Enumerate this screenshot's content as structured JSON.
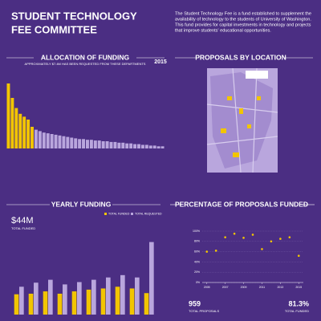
{
  "header": {
    "title_line1": "STUDENT TECHNOLOGY",
    "title_line2": "FEE COMMITTEE",
    "description": [
      "The Student Technology Fee is a fund established to supplement the",
      "availability of technology to the students of University of Washington.",
      "This fund provides for capital investments in technology and projects",
      "that improve students' educational opportunities."
    ],
    "map_title": "PROPOSALS BY LOCATION"
  },
  "chart_data": [
    {
      "type": "bar",
      "title": "ALLOCATION OF FUNDING",
      "subtitle": "APPROXIMATELY $7.4M HAS BEEN REQUESTED FROM THESE DEPARTMENTS",
      "annotation": "2015",
      "categories": [
        null,
        null,
        null,
        null,
        null,
        null,
        null,
        null,
        null,
        null,
        null,
        null,
        null,
        null,
        null,
        null,
        null,
        null,
        null,
        null,
        null,
        null,
        null,
        null,
        null,
        null,
        null,
        null,
        null,
        null,
        null,
        null,
        null,
        null,
        null,
        null,
        null,
        null,
        null,
        null
      ],
      "values": [
        90,
        70,
        56,
        48,
        44,
        40,
        30,
        26,
        24,
        22,
        21,
        20,
        19,
        18,
        17,
        16,
        15,
        14,
        13,
        13,
        12,
        12,
        11,
        11,
        10,
        10,
        9,
        9,
        8,
        8,
        7,
        7,
        6,
        6,
        5,
        5,
        4,
        4,
        3,
        3
      ],
      "colors": [
        "#f2c500",
        "#f2c500",
        "#f2c500",
        "#f2c500",
        "#f2c500",
        "#f2c500",
        "#f2c500",
        "#b9a6dd",
        "#b9a6dd",
        "#b9a6dd",
        "#b9a6dd",
        "#b9a6dd",
        "#b9a6dd",
        "#b9a6dd",
        "#b9a6dd",
        "#b9a6dd",
        "#b9a6dd",
        "#b9a6dd",
        "#b9a6dd",
        "#b9a6dd",
        "#b9a6dd",
        "#b9a6dd",
        "#b9a6dd",
        "#b9a6dd",
        "#b9a6dd",
        "#b9a6dd",
        "#b9a6dd",
        "#b9a6dd",
        "#b9a6dd",
        "#b9a6dd",
        "#b9a6dd",
        "#b9a6dd",
        "#b9a6dd",
        "#b9a6dd",
        "#b9a6dd",
        "#b9a6dd",
        "#b9a6dd",
        "#b9a6dd",
        "#b9a6dd",
        "#b9a6dd"
      ],
      "ylim": [
        0,
        100
      ]
    },
    {
      "type": "bar",
      "title": "YEARLY FUNDING",
      "annotation": "$44M",
      "annotation_label": "TOTAL FUNDED",
      "categories": [
        null,
        null,
        null,
        null,
        null,
        null,
        null,
        null,
        null,
        null
      ],
      "series": [
        {
          "name": "TOTAL FUNDED",
          "color": "#f2c500",
          "values": [
            3.5,
            3.6,
            4.0,
            3.6,
            4.0,
            4.3,
            4.5,
            4.8,
            4.5,
            3.7
          ]
        },
        {
          "name": "TOTAL REQUESTED",
          "color": "#b9a6dd",
          "values": [
            4.8,
            5.5,
            6.0,
            5.2,
            5.6,
            6.0,
            6.4,
            6.8,
            6.4,
            12.5
          ]
        }
      ],
      "ylim": [
        0,
        13
      ]
    },
    {
      "type": "line",
      "title": "PERCENTAGE OF PROPOSALS FUNDED",
      "x": [
        2005,
        2006,
        2007,
        2008,
        2009,
        2010,
        2011,
        2012,
        2013,
        2014,
        2015
      ],
      "values": [
        60,
        62,
        88,
        95,
        87,
        93,
        65,
        80,
        85,
        88,
        52
      ],
      "color": "#f2c500",
      "xlim": [
        2004.5,
        2015.5
      ],
      "xticks": [
        2005,
        2007,
        2009,
        2011,
        2013,
        2015
      ],
      "ylim": [
        0,
        100
      ],
      "yticks": [
        {
          "value": 0,
          "label": "0%"
        },
        {
          "value": 20,
          "label": "20%"
        },
        {
          "value": 40,
          "label": "40%"
        },
        {
          "value": 60,
          "label": "60%"
        },
        {
          "value": 80,
          "label": "80%"
        },
        {
          "value": 100,
          "label": "100%"
        }
      ],
      "grid": true,
      "stats": [
        {
          "value": "959",
          "label": "TOTAL PROPOSALS"
        },
        {
          "value": "81.3%",
          "label": "TOTAL FUNDED"
        }
      ]
    }
  ]
}
